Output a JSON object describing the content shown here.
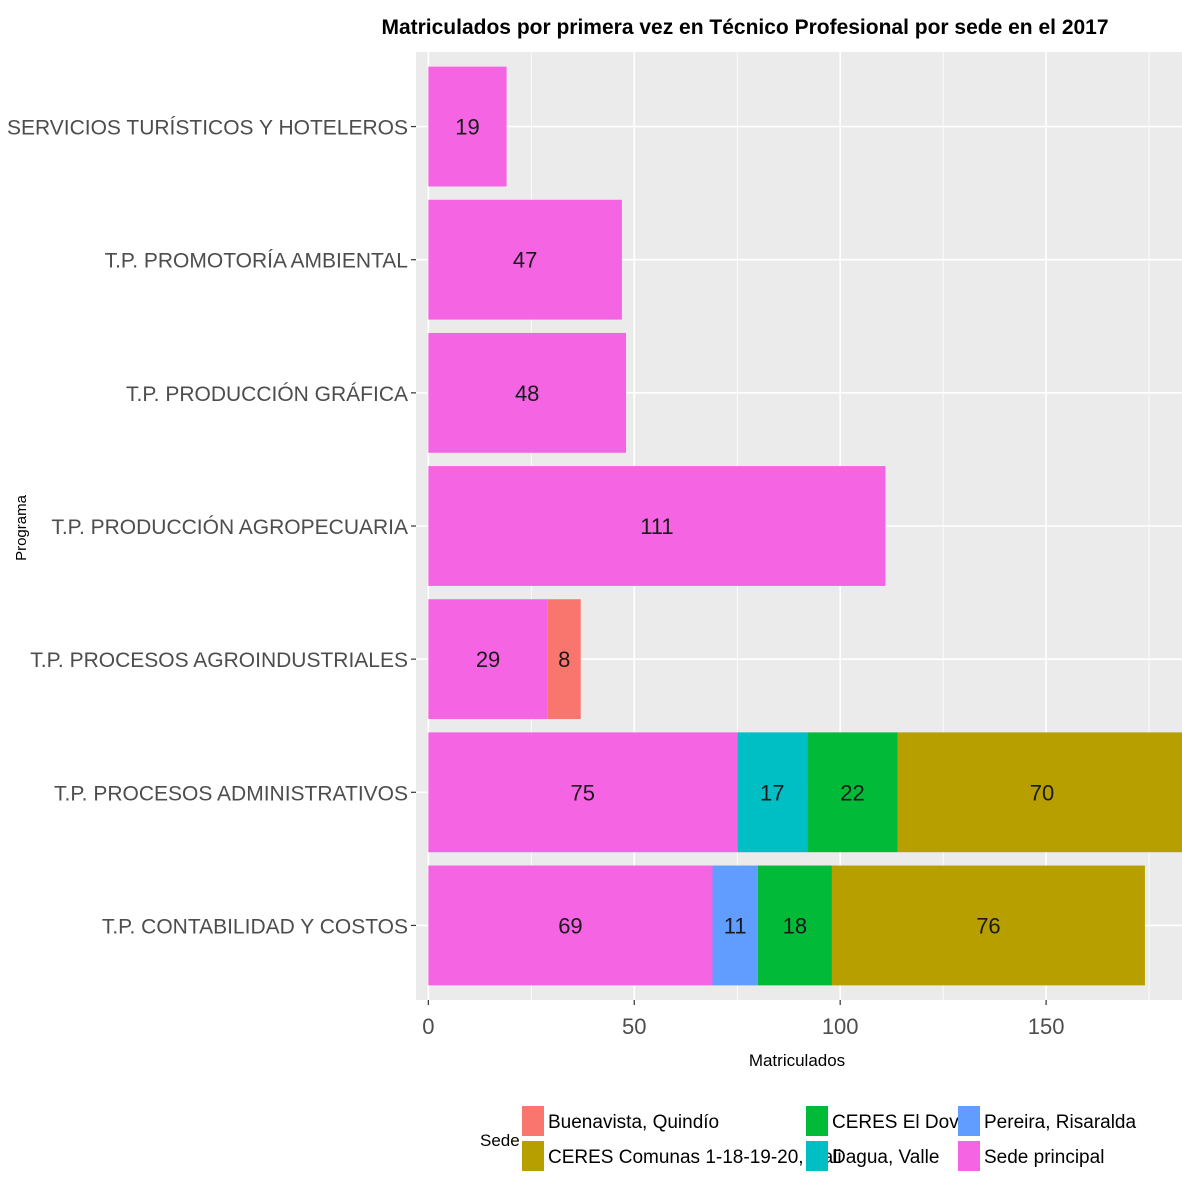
{
  "chart_data": {
    "type": "bar",
    "orientation": "horizontal",
    "stacked": true,
    "title": "Matriculados por primera vez en Técnico Profesional por sede en el 2017",
    "xlabel": "Matriculados",
    "ylabel": "Programa",
    "xlim": [
      -3,
      183
    ],
    "xticks": [
      0,
      50,
      100,
      150
    ],
    "grid": true,
    "legend_position": "bottom",
    "legend_title": "Sede",
    "categories": [
      "T.P. SERVICIOS TURÍSTICOS Y HOTELEROS",
      "T.P. PROMOTORÍA AMBIENTAL",
      "T.P. PRODUCCIÓN GRÁFICA",
      "T.P. PRODUCCIÓN AGROPECUARIA",
      "T.P. PROCESOS AGROINDUSTRIALES",
      "T.P. PROCESOS ADMINISTRATIVOS",
      "T.P. CONTABILIDAD Y COSTOS"
    ],
    "series": [
      {
        "name": "Sede principal",
        "color": "#F564E3",
        "values": [
          19,
          47,
          48,
          111,
          29,
          75,
          69
        ]
      },
      {
        "name": "Buenavista, Quindío",
        "color": "#F8766D",
        "values": [
          0,
          0,
          0,
          0,
          8,
          0,
          0
        ]
      },
      {
        "name": "Pereira, Risaralda",
        "color": "#619CFF",
        "values": [
          0,
          0,
          0,
          0,
          0,
          0,
          11
        ]
      },
      {
        "name": "Dagua, Valle",
        "color": "#00BFC4",
        "values": [
          0,
          0,
          0,
          0,
          0,
          17,
          0
        ]
      },
      {
        "name": "CERES El Dovio",
        "color": "#00BA38",
        "values": [
          0,
          0,
          0,
          0,
          0,
          22,
          18
        ]
      },
      {
        "name": "CERES Comunas 1-18-19-20, Cali",
        "color": "#B79F00",
        "values": [
          0,
          0,
          0,
          0,
          0,
          70,
          76
        ]
      }
    ],
    "legend_items": [
      {
        "name": "Buenavista, Quindío",
        "color": "#F8766D"
      },
      {
        "name": "CERES Comunas 1-18-19-20, Cali",
        "color": "#B79F00"
      },
      {
        "name": "CERES El Dovio",
        "color": "#00BA38"
      },
      {
        "name": "Dagua, Valle",
        "color": "#00BFC4"
      },
      {
        "name": "Pereira, Risaralda",
        "color": "#619CFF"
      },
      {
        "name": "Sede principal",
        "color": "#F564E3"
      }
    ],
    "panel_color": "#EBEBEB",
    "grid_color": "#FFFFFF"
  }
}
